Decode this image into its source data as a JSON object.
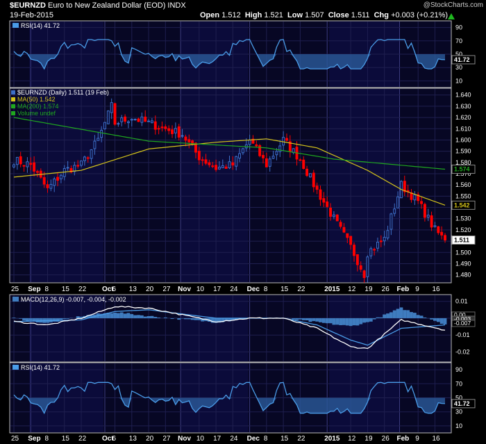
{
  "header": {
    "symbol": "$EURNZD",
    "name": "Euro to New Zealand Dollar (EOD)",
    "exchange": "INDX",
    "date": "19-Feb-2015",
    "watermark": "@StockCharts.com",
    "open_label": "Open",
    "open": "1.512",
    "high_label": "High",
    "high": "1.521",
    "low_label": "Low",
    "low": "1.507",
    "close_label": "Close",
    "close": "1.511",
    "chg_label": "Chg",
    "chg": "+0.003 (+0.21%)"
  },
  "colors": {
    "background": "#000000",
    "panel": "#070724",
    "up": "#3d6fc8",
    "down": "#ff0000",
    "ma50": "#d4c31a",
    "ma200": "#1fa81f",
    "rsi": "#4a9ce8",
    "macd": "#ffffff",
    "signal": "#4a9ce8",
    "hist": "#3f7cbf",
    "grid": "#1f1f4f"
  },
  "chart_data": [
    {
      "type": "line",
      "title": "RSI(14) 41.72",
      "series": [
        {
          "name": "RSI(14)",
          "last": 41.72
        }
      ],
      "y_ticks": [
        "90",
        "70",
        "50",
        "30",
        "10"
      ],
      "ylim": [
        0,
        100
      ],
      "last_label": "41.72"
    },
    {
      "type": "candlestick",
      "legend": [
        "$EURNZD (Daily) 1.511 (19 Feb)",
        "MA(50) 1.542",
        "MA(200) 1.574",
        "Volume undef"
      ],
      "y_ticks": [
        "1.640",
        "1.630",
        "1.620",
        "1.610",
        "1.600",
        "1.590",
        "1.580",
        "1.570",
        "1.560",
        "1.550",
        "1.540",
        "1.530",
        "1.520",
        "1.510",
        "1.500",
        "1.490",
        "1.480"
      ],
      "ylim": [
        1.473,
        1.646
      ],
      "price_label": "1.511",
      "ma50_label": "1.542",
      "ma200_label": "1.574",
      "anchors": {
        "dates": [
          "2014-08-25",
          "2014-09-01",
          "2014-09-08",
          "2014-09-15",
          "2014-09-22",
          "2014-09-29",
          "2014-10-03",
          "2014-10-06",
          "2014-10-13",
          "2014-10-20",
          "2014-10-27",
          "2014-11-03",
          "2014-11-10",
          "2014-11-17",
          "2014-11-24",
          "2014-12-01",
          "2014-12-08",
          "2014-12-15",
          "2014-12-22",
          "2014-12-29",
          "2015-01-05",
          "2015-01-12",
          "2015-01-16",
          "2015-01-19",
          "2015-01-26",
          "2015-02-02",
          "2015-02-09",
          "2015-02-16",
          "2015-02-19"
        ],
        "close": [
          1.582,
          1.578,
          1.556,
          1.573,
          1.578,
          1.6,
          1.63,
          1.615,
          1.62,
          1.615,
          1.61,
          1.605,
          1.585,
          1.575,
          1.578,
          1.6,
          1.578,
          1.6,
          1.583,
          1.555,
          1.53,
          1.505,
          1.481,
          1.5,
          1.512,
          1.56,
          1.545,
          1.52,
          1.511
        ]
      },
      "ma50": {
        "dates": [
          "2014-08-25",
          "2014-09-22",
          "2014-10-20",
          "2014-11-17",
          "2014-12-08",
          "2014-12-29",
          "2015-01-19",
          "2015-02-02",
          "2015-02-19"
        ],
        "values": [
          1.567,
          1.573,
          1.592,
          1.598,
          1.601,
          1.593,
          1.573,
          1.556,
          1.542
        ]
      },
      "ma200": {
        "dates": [
          "2014-08-25",
          "2014-10-20",
          "2014-12-08",
          "2015-01-05",
          "2015-02-19"
        ],
        "values": [
          1.62,
          1.599,
          1.593,
          1.583,
          1.574
        ]
      }
    },
    {
      "type": "line",
      "title": "MACD(12,26,9) -0.007, -0.004, -0.002",
      "series": [
        {
          "name": "MACD(12,26,9)",
          "last": -0.007
        },
        {
          "name": "signal",
          "last": -0.004
        },
        {
          "name": "histogram",
          "last": -0.002
        }
      ],
      "y_ticks": [
        "0.01",
        "0.00",
        "-0.01",
        "-0.02"
      ],
      "ylim": [
        -0.026,
        0.014
      ],
      "right_labels": [
        "0.00",
        "-0.003",
        "-0.007"
      ],
      "macd": {
        "dates": [
          "2014-08-25",
          "2014-09-08",
          "2014-09-22",
          "2014-10-06",
          "2014-10-20",
          "2014-11-03",
          "2014-11-17",
          "2014-12-01",
          "2014-12-15",
          "2014-12-29",
          "2015-01-12",
          "2015-01-19",
          "2015-02-02",
          "2015-02-19"
        ],
        "values": [
          -0.002,
          -0.004,
          0.0,
          0.007,
          0.006,
          0.002,
          -0.002,
          0.0,
          0.0,
          -0.006,
          -0.017,
          -0.018,
          -0.001,
          -0.007
        ]
      },
      "signal": {
        "dates": [
          "2014-08-25",
          "2014-09-22",
          "2014-10-06",
          "2014-10-20",
          "2014-11-17",
          "2014-12-15",
          "2014-12-29",
          "2015-01-12",
          "2015-01-19",
          "2015-02-02",
          "2015-02-19"
        ],
        "values": [
          -0.002,
          -0.001,
          0.004,
          0.005,
          0.0,
          0.0,
          -0.004,
          -0.013,
          -0.016,
          -0.006,
          -0.004
        ]
      }
    },
    {
      "type": "line",
      "title": "RSI(14) 41.72",
      "series": [
        {
          "name": "RSI(14)",
          "last": 41.72
        }
      ],
      "y_ticks": [
        "90",
        "70",
        "50",
        "30",
        "10"
      ],
      "ylim": [
        0,
        100
      ],
      "last_label": "41.72"
    }
  ],
  "x_axis": {
    "labels": [
      {
        "text": "25",
        "date": "2014-08-25"
      },
      {
        "text": "Sep",
        "date": "2014-09-01"
      },
      {
        "text": "8",
        "date": "2014-09-08"
      },
      {
        "text": "15",
        "date": "2014-09-15"
      },
      {
        "text": "22",
        "date": "2014-09-22"
      },
      {
        "text": "Oct",
        "date": "2014-10-01"
      },
      {
        "text": "6",
        "date": "2014-10-06"
      },
      {
        "text": "13",
        "date": "2014-10-13"
      },
      {
        "text": "20",
        "date": "2014-10-20"
      },
      {
        "text": "27",
        "date": "2014-10-27"
      },
      {
        "text": "Nov",
        "date": "2014-11-01"
      },
      {
        "text": "10",
        "date": "2014-11-10"
      },
      {
        "text": "17",
        "date": "2014-11-17"
      },
      {
        "text": "24",
        "date": "2014-11-24"
      },
      {
        "text": "Dec",
        "date": "2014-12-01"
      },
      {
        "text": "8",
        "date": "2014-12-08"
      },
      {
        "text": "15",
        "date": "2014-12-15"
      },
      {
        "text": "22",
        "date": "2014-12-22"
      },
      {
        "text": "2015",
        "date": "2015-01-01"
      },
      {
        "text": "12",
        "date": "2015-01-12"
      },
      {
        "text": "19",
        "date": "2015-01-19"
      },
      {
        "text": "26",
        "date": "2015-01-26"
      },
      {
        "text": "Feb",
        "date": "2015-02-01"
      },
      {
        "text": "9",
        "date": "2015-02-09"
      },
      {
        "text": "16",
        "date": "2015-02-16"
      }
    ],
    "bold": [
      "Sep",
      "Oct",
      "Nov",
      "Dec",
      "2015",
      "Feb"
    ]
  }
}
